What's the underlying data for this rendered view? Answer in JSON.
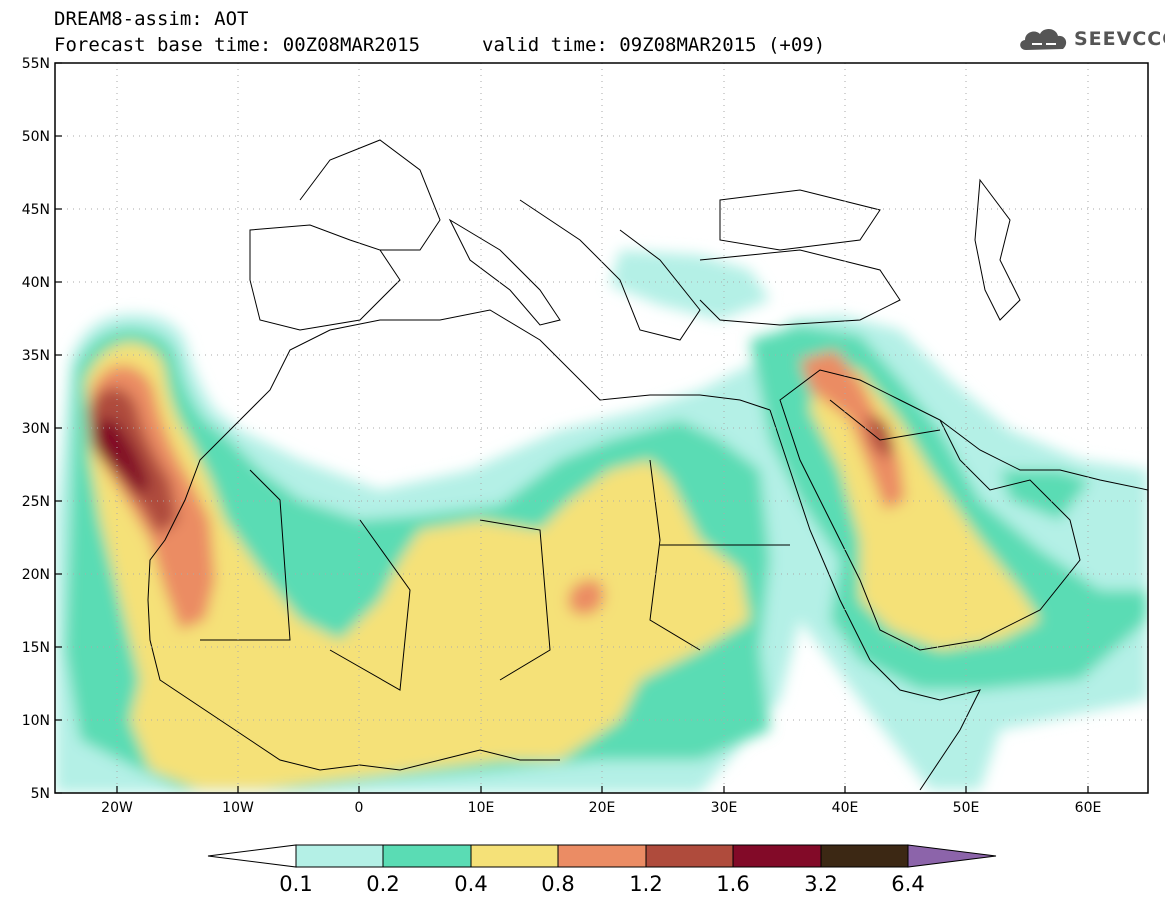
{
  "header": {
    "title": "DREAM8-assim: AOT",
    "base_time": "Forecast base time: 00Z08MAR2015",
    "valid_time": "valid time: 09Z08MAR2015 (+09)",
    "logo_text": "SEEVCCC"
  },
  "map": {
    "extent": {
      "lon_min": -25,
      "lon_max": 65,
      "lat_min": 5,
      "lat_max": 55
    },
    "lat_labels": [
      "55N",
      "50N",
      "45N",
      "40N",
      "35N",
      "30N",
      "25N",
      "20N",
      "15N",
      "10N",
      "5N"
    ],
    "lon_labels": [
      "20W",
      "10W",
      "0",
      "10E",
      "20E",
      "30E",
      "40E",
      "50E",
      "60E"
    ],
    "gridlines": "dotted"
  },
  "colorbar": {
    "thresholds": [
      "0.1",
      "0.2",
      "0.4",
      "0.8",
      "1.2",
      "1.6",
      "3.2",
      "6.4"
    ],
    "colors": [
      "#ffffff",
      "#b4f0e6",
      "#5adcb4",
      "#f5e178",
      "#eb8c64",
      "#af4b3c",
      "#820a28",
      "#3c2814",
      "#8c64aa"
    ]
  }
}
